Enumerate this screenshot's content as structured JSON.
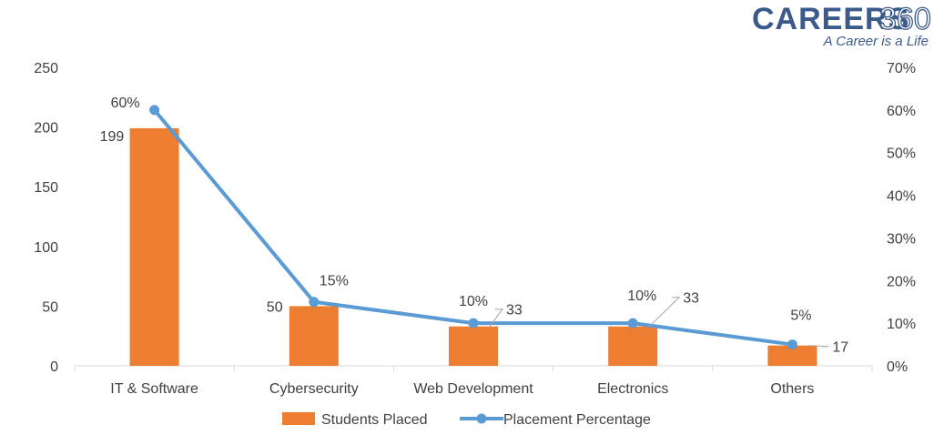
{
  "brand": {
    "name": "CAREERS",
    "number": "360",
    "tagline": "A Career is a Life"
  },
  "chart_data": {
    "type": "bar",
    "categories": [
      "IT & Software",
      "Cybersecurity",
      "Web Development",
      "Electronics",
      "Others"
    ],
    "series": [
      {
        "name": "Students Placed",
        "type": "bar",
        "axis": "left",
        "color": "#ED7D31",
        "values": [
          199,
          50,
          33,
          33,
          17
        ],
        "labels": [
          "199",
          "50",
          "33",
          "33",
          "17"
        ]
      },
      {
        "name": "Placement Percentage",
        "type": "line",
        "axis": "right",
        "color": "#5B9BD5",
        "values": [
          60,
          15,
          10,
          10,
          5
        ],
        "labels": [
          "60%",
          "15%",
          "10%",
          "10%",
          "5%"
        ]
      }
    ],
    "y_left": {
      "min": 0,
      "max": 250,
      "ticks": [
        "0",
        "50",
        "100",
        "150",
        "200",
        "250"
      ]
    },
    "y_right": {
      "min": 0,
      "max": 70,
      "ticks": [
        "0%",
        "10%",
        "20%",
        "30%",
        "40%",
        "50%",
        "60%",
        "70%"
      ]
    },
    "grid": false,
    "legend": "bottom"
  }
}
